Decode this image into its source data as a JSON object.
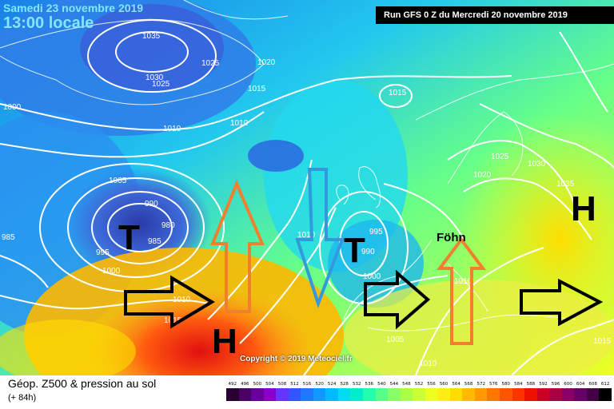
{
  "header": {
    "date": "Samedi 23 novembre 2019",
    "local_time": "13:00 locale",
    "run": "Run GFS 0 Z du Mercredi 20 novembre 2019"
  },
  "map": {
    "pressure_labels": [
      "1035",
      "1025",
      "1020",
      "1030",
      "1025",
      "1015",
      "1015",
      "1010",
      "1010",
      "1000",
      "1005",
      "990",
      "980",
      "985",
      "995",
      "1000",
      "1010",
      "1015",
      "1020",
      "995",
      "990",
      "1000",
      "1005",
      "1025",
      "1030",
      "1035",
      "1010",
      "1010",
      "985",
      "1015",
      "1010"
    ],
    "systems": {
      "low_atlantic": "T",
      "low_biscay": "T",
      "high_atlantic": "H",
      "high_east": "H"
    },
    "annotation_fohn": "Föhn"
  },
  "footer": {
    "title": "Géop. Z500 & pression au sol",
    "forecast_hours": "(+ 84h)",
    "copyright": "Copyright © 2019 Meteociel.fr"
  },
  "colorbar": {
    "values": [
      "492",
      "496",
      "500",
      "504",
      "508",
      "512",
      "516",
      "520",
      "524",
      "528",
      "532",
      "536",
      "540",
      "544",
      "548",
      "552",
      "556",
      "560",
      "564",
      "568",
      "572",
      "576",
      "580",
      "584",
      "588",
      "592",
      "596",
      "600",
      "604",
      "608",
      "612"
    ],
    "colors": [
      "#2a0033",
      "#4b0066",
      "#6a0099",
      "#8800cc",
      "#6633ff",
      "#3355ff",
      "#2277ff",
      "#1199ff",
      "#00bbff",
      "#00ddee",
      "#00eecc",
      "#22ffaa",
      "#55ff88",
      "#88ff66",
      "#aaff44",
      "#ccff33",
      "#eeff22",
      "#ffee11",
      "#ffdd00",
      "#ffbb00",
      "#ff9900",
      "#ff7700",
      "#ff5500",
      "#ff3300",
      "#ee1100",
      "#cc0022",
      "#aa0044",
      "#880066",
      "#660066",
      "#440044",
      "#000000"
    ]
  },
  "colors": {
    "arrow_black": "#000000",
    "arrow_orange": "#f08030",
    "arrow_blue": "#3399dd"
  }
}
